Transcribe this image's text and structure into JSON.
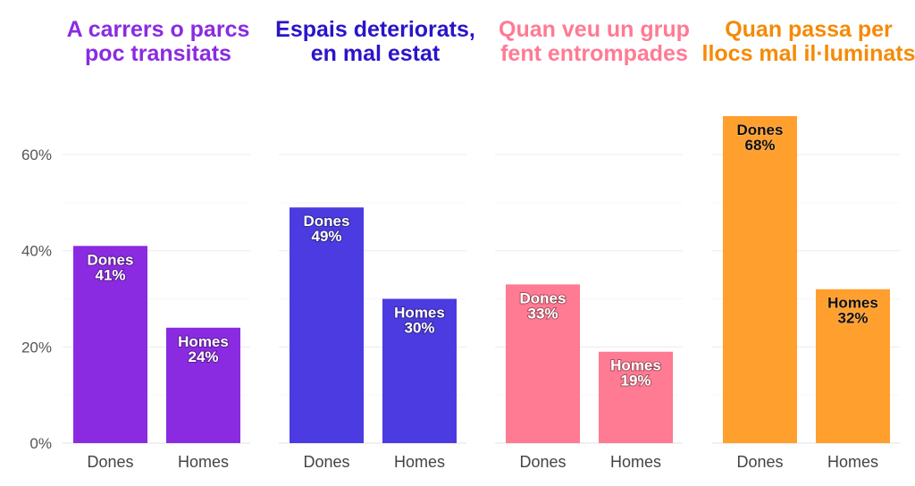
{
  "chart_data": {
    "type": "bar",
    "ylim": [
      0,
      70
    ],
    "y_ticks": [
      0,
      20,
      40,
      60
    ],
    "y_tick_labels": [
      "0%",
      "20%",
      "40%",
      "60%"
    ],
    "grid": true,
    "categories": [
      "Dones",
      "Homes"
    ],
    "panels": [
      {
        "title": "A carrers o parcs poc transitats",
        "color": "#8A2BE2",
        "values": [
          41,
          24
        ],
        "labels": [
          [
            "Dones",
            "41%"
          ],
          [
            "Homes",
            "24%"
          ]
        ],
        "label_color": "#ffffff"
      },
      {
        "title": "Espais deteriorats, en mal estat",
        "color": "#4B3BE0",
        "title_color": "#2A14C9",
        "values": [
          49,
          30
        ],
        "labels": [
          [
            "Dones",
            "49%"
          ],
          [
            "Homes",
            "30%"
          ]
        ],
        "label_color": "#ffffff"
      },
      {
        "title": "Quan veu un grup fent entrompades",
        "color": "#FF7A93",
        "values": [
          33,
          19
        ],
        "labels": [
          [
            "Dones",
            "33%"
          ],
          [
            "Homes",
            "19%"
          ]
        ],
        "label_color": "#ffffff"
      },
      {
        "title": "Quan passa per llocs mal il·luminats",
        "color": "#FF9F2E",
        "title_color": "#F58A07",
        "values": [
          68,
          32
        ],
        "labels": [
          [
            "Dones",
            "68%"
          ],
          [
            "Homes",
            "32%"
          ]
        ],
        "label_color": "#111111"
      }
    ]
  }
}
